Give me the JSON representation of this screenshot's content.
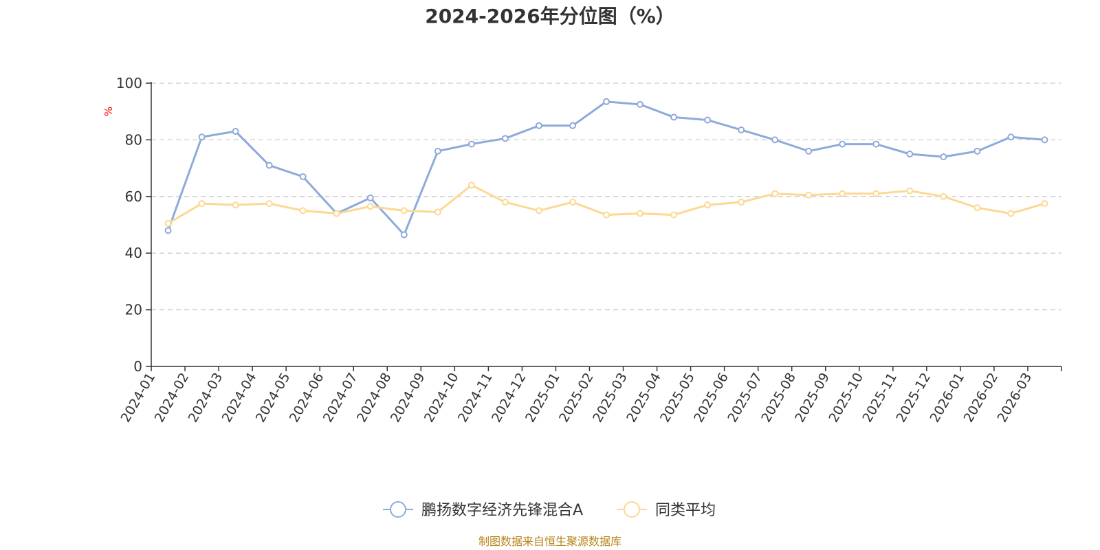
{
  "chart_data": {
    "type": "line",
    "title": "2024-2026年分位图（%）",
    "ylabel": "%",
    "xlabel": "",
    "ylim": [
      0,
      100
    ],
    "yticks": [
      0,
      20,
      40,
      60,
      80,
      100
    ],
    "grid": true,
    "legend_position": "bottom-center",
    "categories": [
      "2024-01",
      "2024-02",
      "2024-03",
      "2024-04",
      "2024-05",
      "2024-06",
      "2024-07",
      "2024-08",
      "2024-09",
      "2024-10",
      "2024-11",
      "2024-12",
      "2025-01",
      "2025-02",
      "2025-03",
      "2025-04",
      "2025-05",
      "2025-06",
      "2025-07",
      "2025-08",
      "2025-09",
      "2025-10",
      "2025-11",
      "2025-12",
      "2026-01",
      "2026-02",
      "2026-03"
    ],
    "series": [
      {
        "name": "鹏扬数字经济先锋混合A",
        "color": "#8eaadb",
        "values": [
          48,
          81,
          83,
          71,
          67,
          54,
          59.5,
          46.5,
          76,
          78.5,
          80.5,
          85,
          85,
          93.5,
          92.5,
          88,
          87,
          83.5,
          80,
          76,
          78.5,
          78.5,
          75,
          74,
          76,
          81,
          80
        ]
      },
      {
        "name": "同类平均",
        "color": "#fcd893",
        "values": [
          50.5,
          57.5,
          57,
          57.5,
          55,
          54,
          56.5,
          55,
          54.5,
          64,
          58,
          55,
          58,
          53.5,
          54,
          53.5,
          57,
          58,
          61,
          60.5,
          61,
          61,
          62,
          60,
          56,
          54,
          57.5
        ]
      }
    ]
  },
  "footer": {
    "source": "制图数据来自恒生聚源数据库"
  }
}
